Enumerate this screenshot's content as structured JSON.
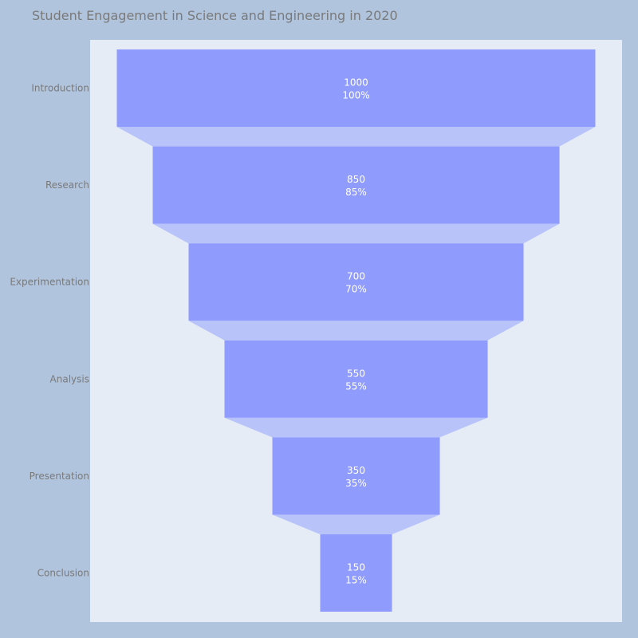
{
  "chart_data": {
    "type": "funnel",
    "title": "Student Engagement in Science and Engineering in 2020",
    "categories": [
      "Introduction",
      "Research",
      "Experimentation",
      "Analysis",
      "Presentation",
      "Conclusion"
    ],
    "values": [
      1000,
      850,
      700,
      550,
      350,
      150
    ],
    "percent_labels": [
      "100%",
      "85%",
      "70%",
      "55%",
      "35%",
      "15%"
    ],
    "xlabel": "",
    "ylabel": "",
    "grid": false,
    "legend": "none"
  },
  "colors": {
    "page_background": "#b0c4de",
    "plot_background": "#e5ecf6",
    "bar_fill": "#8f9cfd",
    "connector_fill": "#b8c3f9",
    "title_text": "#7a7a7a",
    "label_text": "#7a7a7a",
    "value_text": "#ffffff"
  }
}
